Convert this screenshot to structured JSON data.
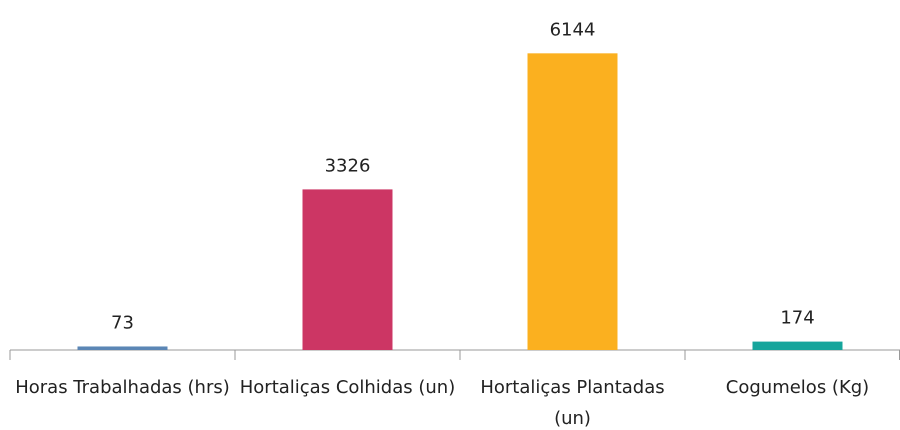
{
  "chart_data": {
    "type": "bar",
    "categories": [
      "Horas Trabalhadas (hrs)",
      "Hortaliças Colhidas (un)",
      "Hortaliças Plantadas (un)",
      "Cogumelos (Kg)"
    ],
    "values": [
      73,
      3326,
      6144,
      174
    ],
    "colors": [
      "#5b86b5",
      "#cc3664",
      "#fbb01f",
      "#16a59c"
    ],
    "ylim": [
      0,
      7000
    ]
  }
}
